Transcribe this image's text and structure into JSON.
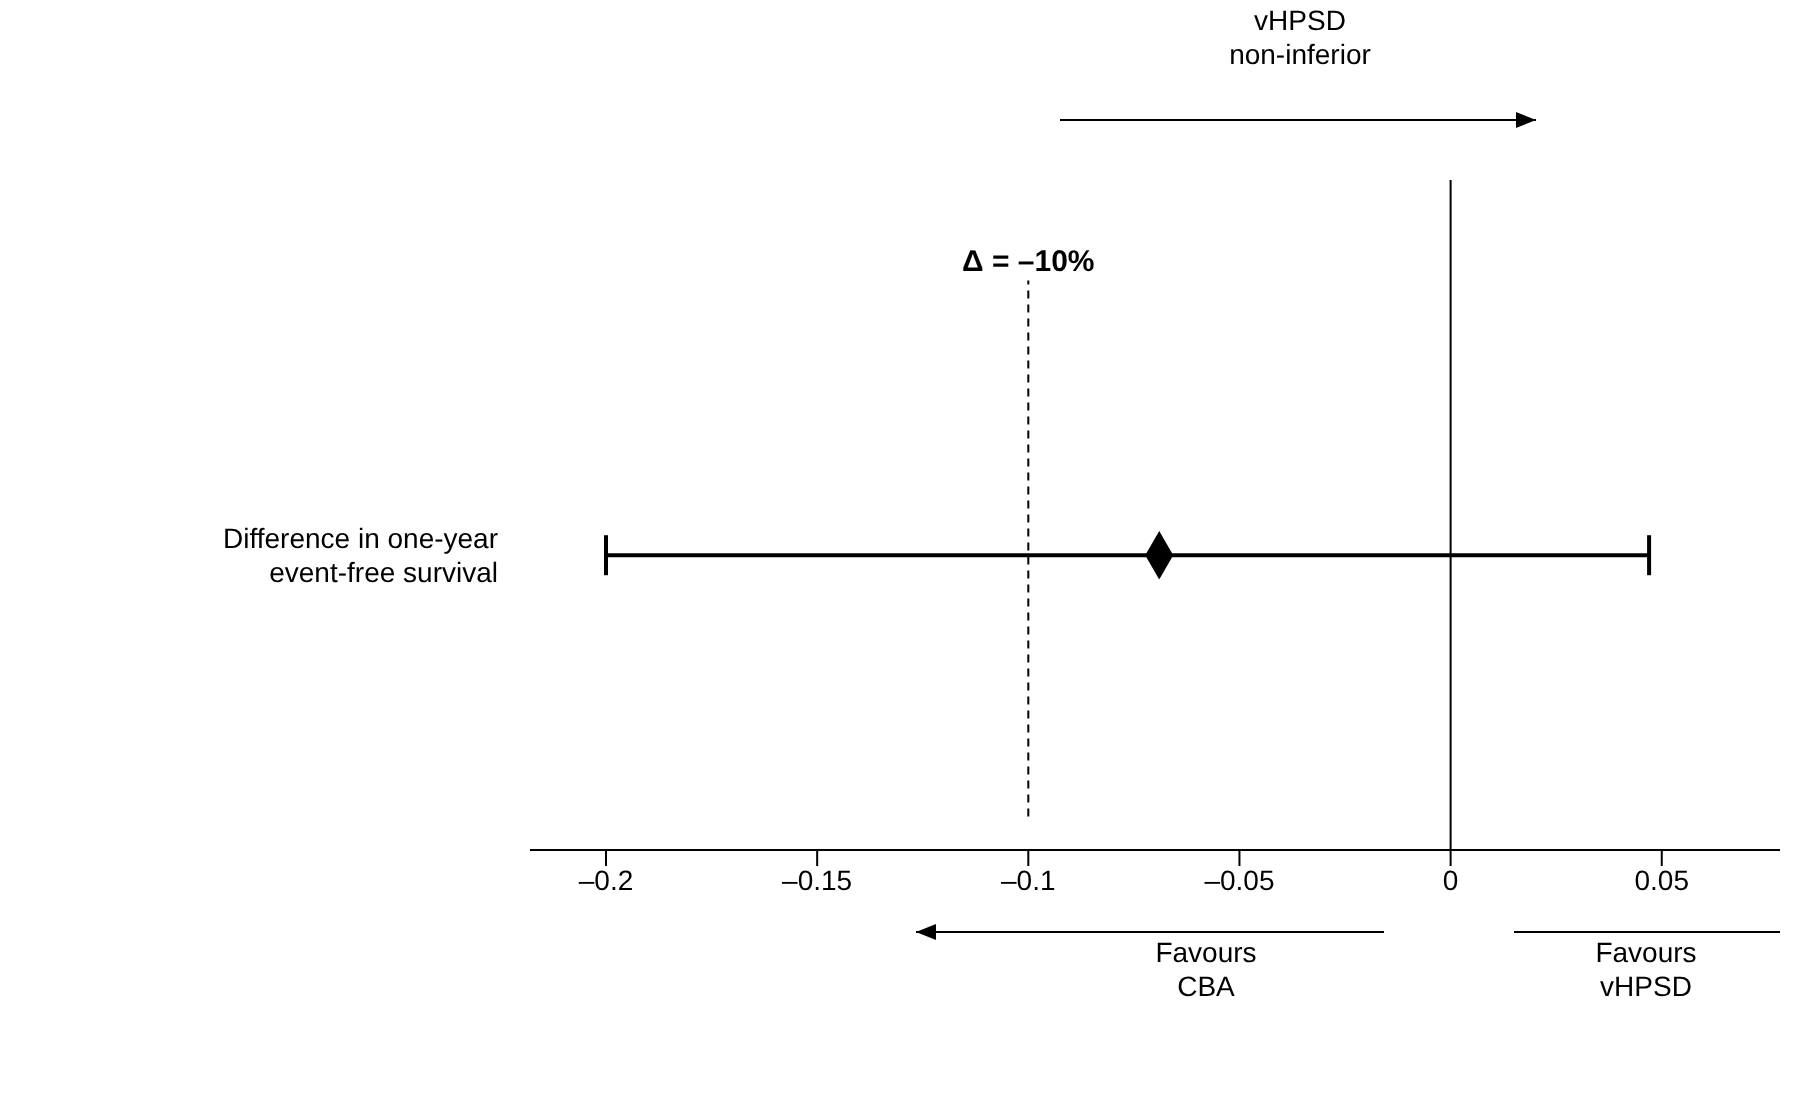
{
  "chart_data": {
    "type": "scatter",
    "orientation": "horizontal",
    "categories": [
      "Difference in one-year\nevent-free survival"
    ],
    "values": [
      -0.069
    ],
    "errors": [
      [
        -0.2,
        0.047
      ]
    ],
    "color": "#000000",
    "marker": "diamond",
    "xlim": [
      -0.218,
      0.078
    ],
    "xticks": [
      {
        "value": -0.2,
        "label": "–0.2"
      },
      {
        "value": -0.15,
        "label": "–0.15"
      },
      {
        "value": -0.1,
        "label": "–0.1"
      },
      {
        "value": -0.05,
        "label": "–0.05"
      },
      0,
      0.05
    ],
    "ref_lines": [
      {
        "axis": "x",
        "value": -0.1,
        "label": "Δ = –10%",
        "line_style": "dashed"
      },
      {
        "axis": "x",
        "value": 0,
        "line_style": "solid"
      }
    ],
    "annotations": [
      "vHPSD\nnon-inferior",
      "Favours\nCBA",
      "Favours\nvHPSD"
    ]
  }
}
